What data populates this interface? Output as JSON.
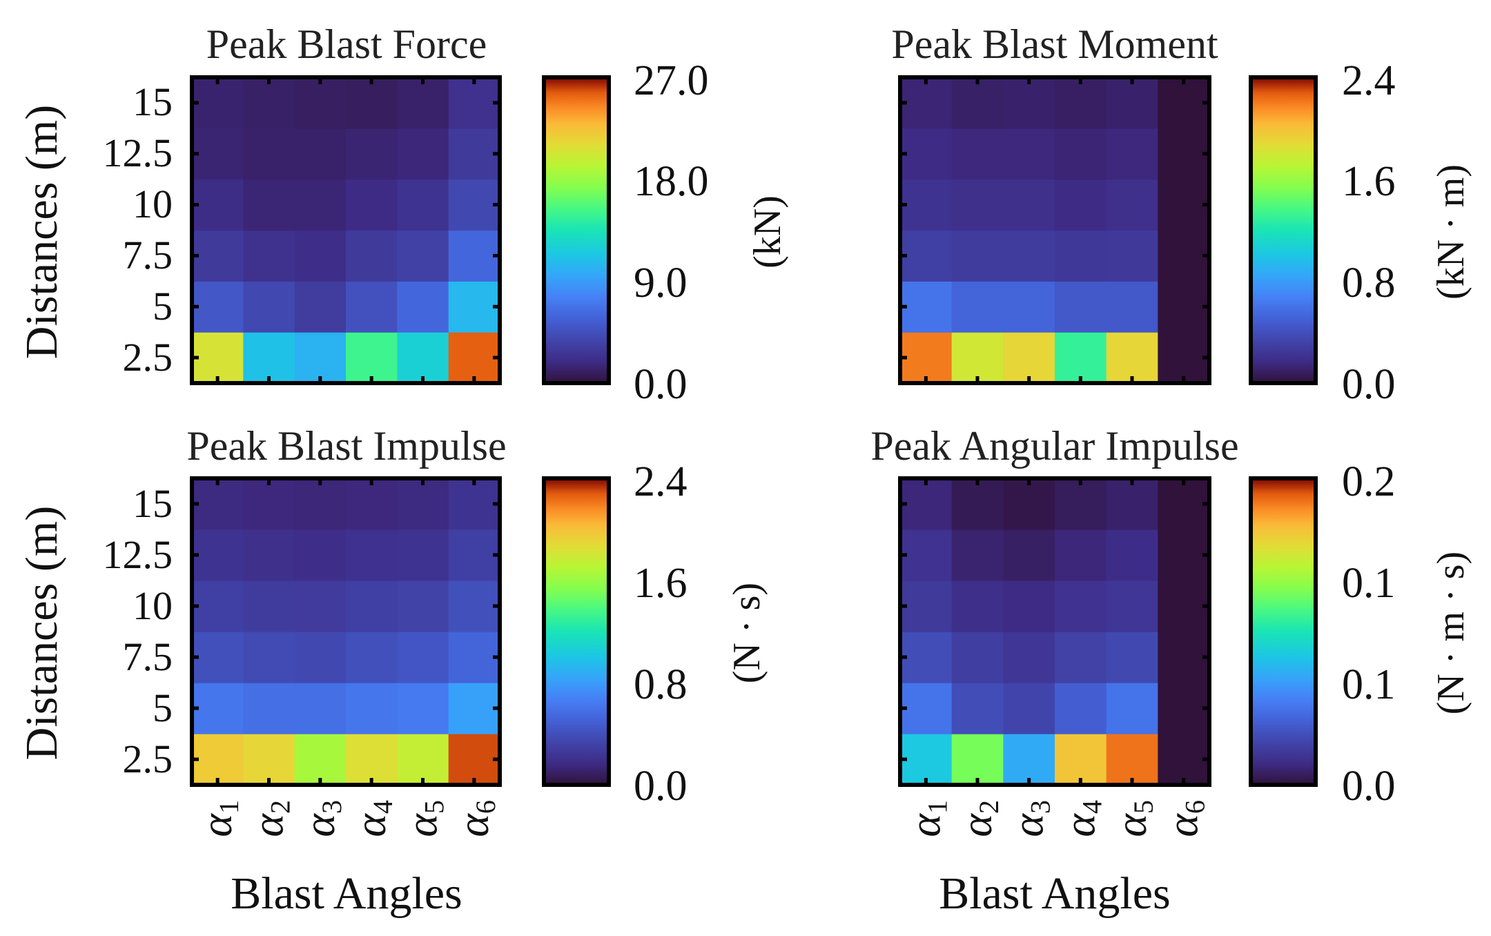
{
  "chart_data": [
    {
      "type": "heatmap",
      "title": "Peak Blast Force",
      "rows": [
        "2.5",
        "5",
        "7.5",
        "10",
        "12.5",
        "15"
      ],
      "columns": [
        "α1",
        "α2",
        "α3",
        "α4",
        "α5",
        "α6"
      ],
      "ylabel": "Distances (m)",
      "xlabel": "",
      "colorbar_label": "(kN)",
      "colorbar_ticks": [
        "0.0",
        "9.0",
        "18.0",
        "27.0"
      ],
      "vmin": 0,
      "vmax": 27,
      "colormap": "turbo",
      "values": [
        [
          20.5,
          11.0,
          10.2,
          15.0,
          12.0,
          25.5
        ],
        [
          5.0,
          4.0,
          3.2,
          4.6,
          6.0,
          10.5
        ],
        [
          3.0,
          2.4,
          2.1,
          3.0,
          3.5,
          6.0
        ],
        [
          2.0,
          1.5,
          1.5,
          1.9,
          2.5,
          4.0
        ],
        [
          1.4,
          1.2,
          1.2,
          1.4,
          1.6,
          3.0
        ],
        [
          1.3,
          1.1,
          1.0,
          0.9,
          1.2,
          2.3
        ]
      ]
    },
    {
      "type": "heatmap",
      "title": "Peak Blast Moment",
      "rows": [
        "2.5",
        "5",
        "7.5",
        "10",
        "12.5",
        "15"
      ],
      "columns": [
        "α1",
        "α2",
        "α3",
        "α4",
        "α5",
        "α6"
      ],
      "ylabel": "",
      "xlabel": "",
      "colorbar_label": "(kN · m)",
      "colorbar_ticks": [
        "0.0",
        "0.8",
        "1.6",
        "2.4"
      ],
      "vmin": 0,
      "vmax": 2.4,
      "colormap": "turbo",
      "values": [
        [
          2.2,
          1.8,
          1.9,
          1.3,
          1.9,
          0.0
        ],
        [
          0.6,
          0.52,
          0.52,
          0.45,
          0.45,
          0.0
        ],
        [
          0.3,
          0.28,
          0.28,
          0.25,
          0.26,
          0.0
        ],
        [
          0.22,
          0.2,
          0.2,
          0.17,
          0.2,
          0.0
        ],
        [
          0.17,
          0.15,
          0.15,
          0.13,
          0.15,
          0.0
        ],
        [
          0.13,
          0.1,
          0.11,
          0.09,
          0.11,
          0.0
        ]
      ]
    },
    {
      "type": "heatmap",
      "title": "Peak Blast Impulse",
      "rows": [
        "2.5",
        "5",
        "7.5",
        "10",
        "12.5",
        "15"
      ],
      "columns": [
        "α1",
        "α2",
        "α3",
        "α4",
        "α5",
        "α6"
      ],
      "ylabel": "Distances (m)",
      "xlabel": "Blast Angles",
      "colorbar_label": "(N · s)",
      "colorbar_ticks": [
        "0.0",
        "0.8",
        "1.6",
        "2.4"
      ],
      "vmin": 0,
      "vmax": 2.4,
      "colormap": "turbo",
      "values": [
        [
          1.95,
          1.9,
          1.65,
          1.85,
          1.75,
          2.3
        ],
        [
          0.62,
          0.58,
          0.58,
          0.62,
          0.64,
          0.82
        ],
        [
          0.4,
          0.37,
          0.36,
          0.4,
          0.43,
          0.52
        ],
        [
          0.3,
          0.28,
          0.27,
          0.3,
          0.32,
          0.4
        ],
        [
          0.22,
          0.2,
          0.19,
          0.21,
          0.22,
          0.3
        ],
        [
          0.16,
          0.15,
          0.14,
          0.15,
          0.16,
          0.22
        ]
      ]
    },
    {
      "type": "heatmap",
      "title": "Peak Angular Impulse",
      "rows": [
        "2.5",
        "5",
        "7.5",
        "10",
        "12.5",
        "15"
      ],
      "columns": [
        "α1",
        "α2",
        "α3",
        "α4",
        "α5",
        "α6"
      ],
      "ylabel": "",
      "xlabel": "Blast Angles",
      "colorbar_label": "(N · m · s)",
      "colorbar_ticks": [
        "0.0",
        "0.1",
        "0.1",
        "0.2"
      ],
      "vmin": 0,
      "vmax": 0.2,
      "colormap": "turbo",
      "values": [
        [
          0.085,
          0.125,
          0.072,
          0.165,
          0.185,
          0.0
        ],
        [
          0.05,
          0.032,
          0.028,
          0.04,
          0.05,
          0.0
        ],
        [
          0.032,
          0.024,
          0.02,
          0.026,
          0.03,
          0.0
        ],
        [
          0.022,
          0.016,
          0.014,
          0.018,
          0.02,
          0.0
        ],
        [
          0.018,
          0.01,
          0.008,
          0.012,
          0.015,
          0.0
        ],
        [
          0.012,
          0.005,
          0.003,
          0.006,
          0.009,
          0.0
        ]
      ]
    }
  ]
}
